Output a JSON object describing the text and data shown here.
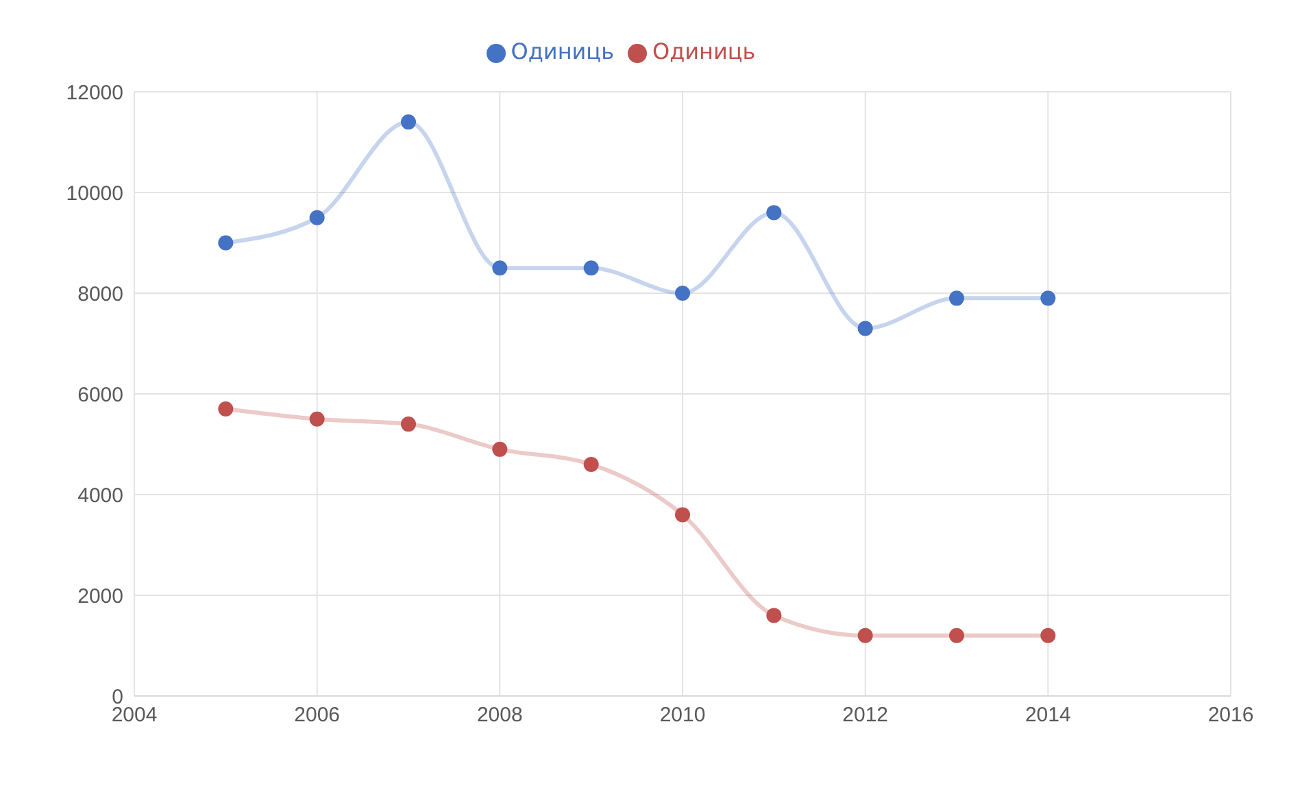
{
  "chart_data": {
    "type": "line",
    "x": [
      2005,
      2006,
      2007,
      2008,
      2009,
      2010,
      2011,
      2012,
      2013,
      2014
    ],
    "series": [
      {
        "name": "Одиниць",
        "color": "#4472c4",
        "values": [
          9000,
          9500,
          11400,
          8500,
          8500,
          8000,
          9600,
          7300,
          7900,
          7900
        ]
      },
      {
        "name": "Одиниць",
        "color": "#c0504d",
        "values": [
          5700,
          5500,
          5400,
          4900,
          4600,
          3600,
          1600,
          1200,
          1200,
          1200
        ]
      }
    ],
    "xlim": [
      2004,
      2016
    ],
    "xticks": [
      2004,
      2006,
      2008,
      2010,
      2012,
      2014,
      2016
    ],
    "ylim": [
      0,
      12000
    ],
    "yticks": [
      0,
      2000,
      4000,
      6000,
      8000,
      10000,
      12000
    ],
    "grid": true,
    "legend": "top",
    "marker": "circle"
  }
}
